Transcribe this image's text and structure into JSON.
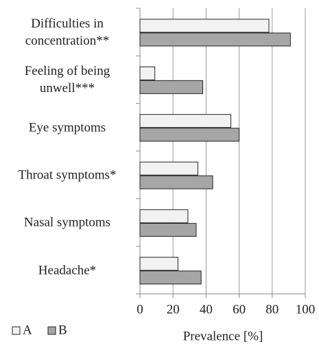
{
  "chart_data": {
    "type": "barh",
    "categories": [
      "Difficulties in concentration**",
      "Feeling of being unwell***",
      "Eye symptoms",
      "Throat symptoms*",
      "Nasal symptoms",
      "Headache*"
    ],
    "series": [
      {
        "name": "A",
        "color": "#f2f2f2",
        "values": [
          78,
          9,
          55,
          35,
          29,
          23
        ]
      },
      {
        "name": "B",
        "color": "#a6a6a6",
        "values": [
          91,
          38,
          60,
          44,
          34,
          37
        ]
      }
    ],
    "xlabel": "Prevalence [%]",
    "xlim": [
      0,
      100
    ],
    "xticks": [
      0,
      20,
      40,
      60,
      80,
      100
    ],
    "grid": true,
    "legend": "bottom-left"
  }
}
